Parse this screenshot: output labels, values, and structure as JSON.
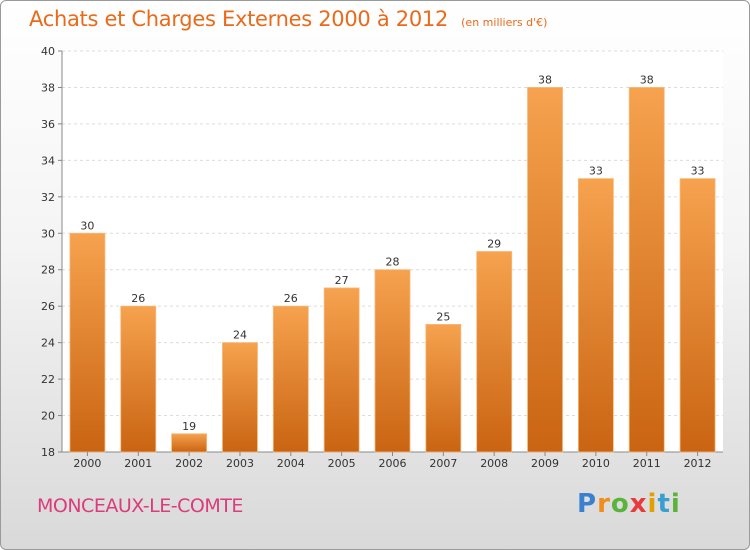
{
  "header": {
    "title": "Achats et Charges Externes 2000 à 2012",
    "subtitle": "(en milliers d'€)"
  },
  "footer": {
    "city": "MONCEAUX-LE-COMTE",
    "logo": "Proxiti"
  },
  "colors": {
    "bar_top": "#f6a24e",
    "bar_bottom": "#c96412",
    "accent": "#ea6a1a",
    "city": "#dd3b7c"
  },
  "chart_data": {
    "type": "bar",
    "title": "Achats et Charges Externes 2000 à 2012",
    "subtitle": "(en milliers d'€)",
    "categories": [
      "2000",
      "2001",
      "2002",
      "2003",
      "2004",
      "2005",
      "2006",
      "2007",
      "2008",
      "2009",
      "2010",
      "2011",
      "2012"
    ],
    "values": [
      30,
      26,
      19,
      24,
      26,
      27,
      28,
      25,
      29,
      38,
      33,
      38,
      33
    ],
    "ylim": [
      18,
      40
    ],
    "yticks": [
      18,
      20,
      22,
      24,
      26,
      28,
      30,
      32,
      34,
      36,
      38,
      40
    ],
    "grid": true,
    "legend": "none"
  }
}
